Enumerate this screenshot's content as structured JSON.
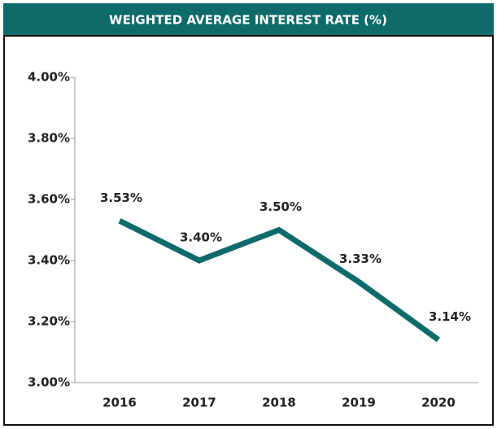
{
  "chart_data": {
    "type": "line",
    "title": "WEIGHTED AVERAGE INTEREST RATE (%)",
    "categories": [
      "2016",
      "2017",
      "2018",
      "2019",
      "2020"
    ],
    "series": [
      {
        "name": "Weighted average interest rate",
        "color": "#0f6b6b",
        "values": [
          3.53,
          3.4,
          3.5,
          3.33,
          3.14
        ],
        "value_labels": [
          "3.53%",
          "3.40%",
          "3.50%",
          "3.33%",
          "3.14%"
        ]
      }
    ],
    "ylim": [
      3.0,
      4.0
    ],
    "yticks": [
      {
        "value": 3.0,
        "label": "3.00%"
      },
      {
        "value": 3.2,
        "label": "3.20%"
      },
      {
        "value": 3.4,
        "label": "3.40%"
      },
      {
        "value": 3.6,
        "label": "3.60%"
      },
      {
        "value": 3.8,
        "label": "3.80%"
      },
      {
        "value": 4.0,
        "label": "4.00%"
      }
    ],
    "grid": false
  }
}
